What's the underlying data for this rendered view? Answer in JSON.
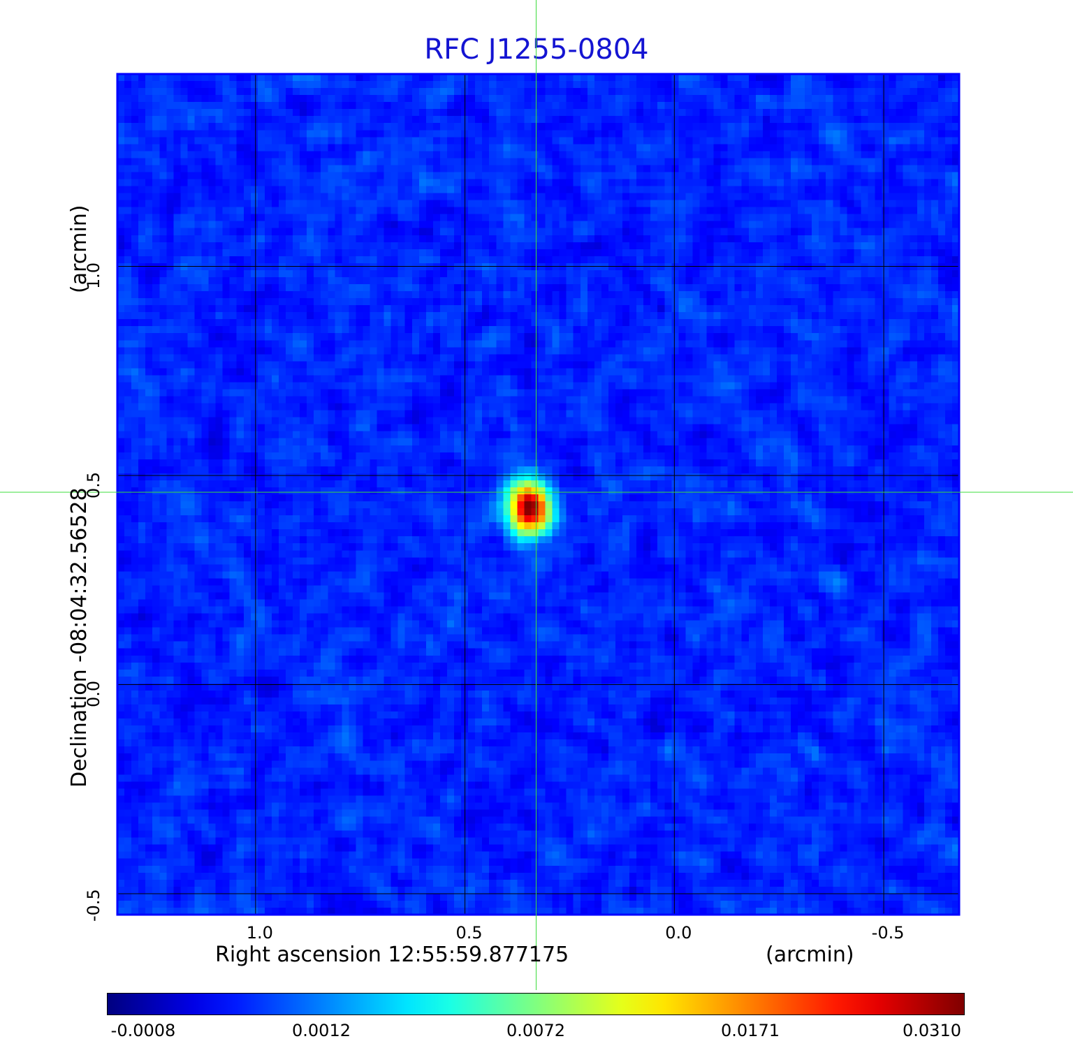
{
  "chart_data": {
    "type": "heatmap",
    "title": "RFC J1255-0804",
    "xlabel": "Right ascension  12:55:59.877175",
    "xunit": "(arcmin)",
    "ylabel": "Declination  -08:04:32.56528",
    "yunit": "(arcmin)",
    "x_axis_reversed": true,
    "xlim": [
      1.33,
      -0.68
    ],
    "ylim": [
      -0.55,
      1.46
    ],
    "xticks": [
      {
        "value": 1.0,
        "label": "1.0"
      },
      {
        "value": 0.5,
        "label": "0.5"
      },
      {
        "value": 0.0,
        "label": "0.0"
      },
      {
        "value": -0.5,
        "label": "-0.5"
      }
    ],
    "yticks": [
      {
        "value": -0.5,
        "label": "-0.5"
      },
      {
        "value": 0.0,
        "label": "0.0"
      },
      {
        "value": 0.5,
        "label": "0.5"
      },
      {
        "value": 1.0,
        "label": "1.0"
      }
    ],
    "grid": true,
    "crosshair": {
      "x": 0.33,
      "y": 0.46
    },
    "peak": {
      "x": 0.355,
      "y": 0.43,
      "value": 0.031
    },
    "colormap": "jet",
    "colorbar_ticks": [
      "-0.0008",
      "0.0012",
      "0.0072",
      "0.0171",
      "0.0310"
    ],
    "background_level": "uniform noise near 0.0",
    "colors": {
      "title": "#1414d2",
      "grid": "#000000",
      "crosshair": "#3cdc3c",
      "frame": "#0000ff"
    }
  }
}
